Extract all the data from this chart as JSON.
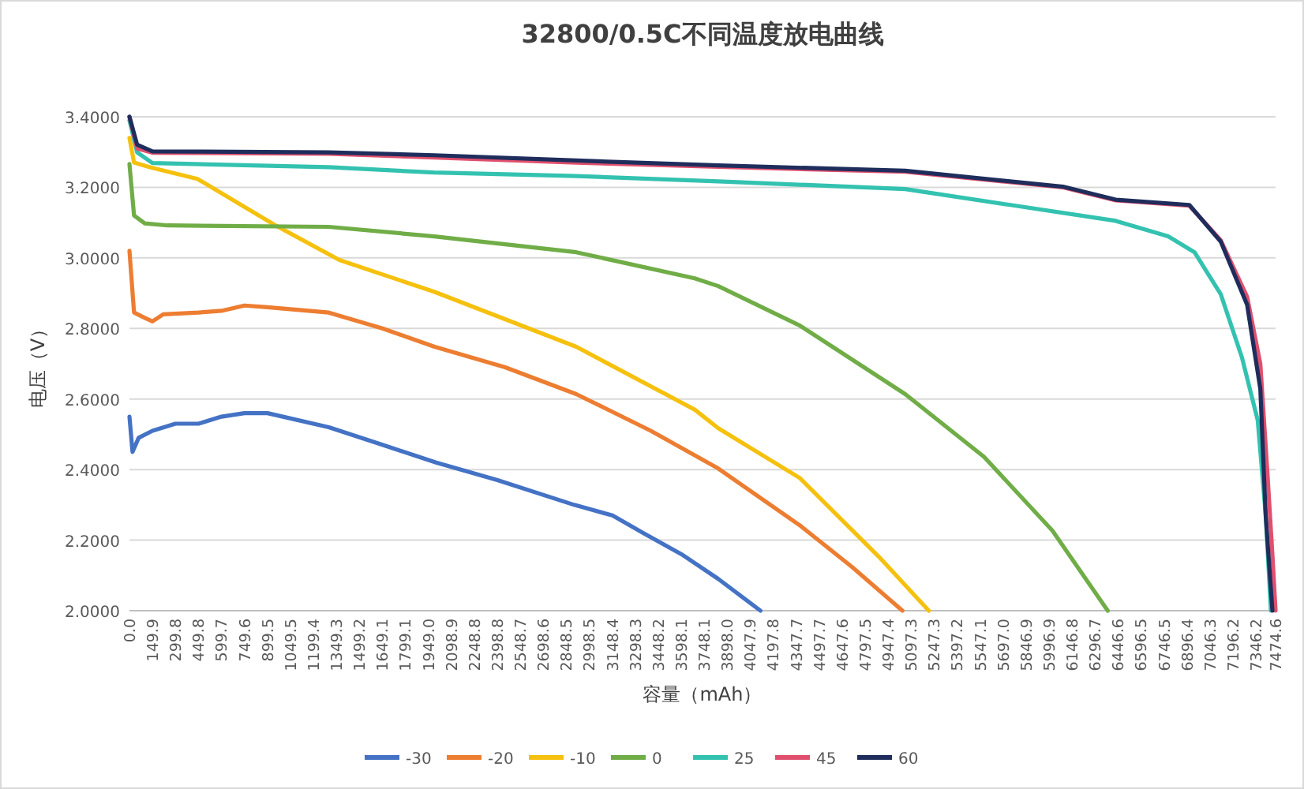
{
  "chart_data": {
    "type": "line",
    "title": "32800/0.5C不同温度放电曲线",
    "xlabel": "容量（mAh）",
    "ylabel": "电压（V）",
    "xlim": [
      0,
      7474.6
    ],
    "ylim": [
      2.0,
      3.4
    ],
    "xticks": [
      {
        "value": 0,
        "label": "0.0"
      },
      {
        "value": 149.9,
        "label": "149.9"
      },
      {
        "value": 299.8,
        "label": "299.8"
      },
      {
        "value": 449.8,
        "label": "449.8"
      },
      {
        "value": 599.7,
        "label": "599.7"
      },
      {
        "value": 749.6,
        "label": "749.6"
      },
      {
        "value": 899.5,
        "label": "899.5"
      },
      {
        "value": 1049.5,
        "label": "1049.5"
      },
      {
        "value": 1199.4,
        "label": "1199.4"
      },
      {
        "value": 1349.3,
        "label": "1349.3"
      },
      {
        "value": 1499.2,
        "label": "1499.2"
      },
      {
        "value": 1649.1,
        "label": "1649.1"
      },
      {
        "value": 1799.1,
        "label": "1799.1"
      },
      {
        "value": 1949,
        "label": "1949.0"
      },
      {
        "value": 2098.9,
        "label": "2098.9"
      },
      {
        "value": 2248.8,
        "label": "2248.8"
      },
      {
        "value": 2398.8,
        "label": "2398.8"
      },
      {
        "value": 2548.7,
        "label": "2548.7"
      },
      {
        "value": 2698.6,
        "label": "2698.6"
      },
      {
        "value": 2848.5,
        "label": "2848.5"
      },
      {
        "value": 2998.5,
        "label": "2998.5"
      },
      {
        "value": 3148.4,
        "label": "3148.4"
      },
      {
        "value": 3298.3,
        "label": "3298.3"
      },
      {
        "value": 3448.2,
        "label": "3448.2"
      },
      {
        "value": 3598.1,
        "label": "3598.1"
      },
      {
        "value": 3748.1,
        "label": "3748.1"
      },
      {
        "value": 3898,
        "label": "3898.0"
      },
      {
        "value": 4047.9,
        "label": "4047.9"
      },
      {
        "value": 4197.8,
        "label": "4197.8"
      },
      {
        "value": 4347.7,
        "label": "4347.7"
      },
      {
        "value": 4497.7,
        "label": "4497.7"
      },
      {
        "value": 4647.6,
        "label": "4647.6"
      },
      {
        "value": 4797.5,
        "label": "4797.5"
      },
      {
        "value": 4947.4,
        "label": "4947.4"
      },
      {
        "value": 5097.3,
        "label": "5097.3"
      },
      {
        "value": 5247.3,
        "label": "5247.3"
      },
      {
        "value": 5397.2,
        "label": "5397.2"
      },
      {
        "value": 5547.1,
        "label": "5547.1"
      },
      {
        "value": 5697,
        "label": "5697.0"
      },
      {
        "value": 5846.9,
        "label": "5846.9"
      },
      {
        "value": 5996.9,
        "label": "5996.9"
      },
      {
        "value": 6146.8,
        "label": "6146.8"
      },
      {
        "value": 6296.7,
        "label": "6296.7"
      },
      {
        "value": 6446.6,
        "label": "6446.6"
      },
      {
        "value": 6596.5,
        "label": "6596.5"
      },
      {
        "value": 6746.5,
        "label": "6746.5"
      },
      {
        "value": 6896.4,
        "label": "6896.4"
      },
      {
        "value": 7046.3,
        "label": "7046.3"
      },
      {
        "value": 7196.2,
        "label": "7196.2"
      },
      {
        "value": 7346.2,
        "label": "7346.2"
      },
      {
        "value": 7474.6,
        "label": "7474.6"
      }
    ],
    "yticks": [
      {
        "value": 2.0,
        "label": "2.0000"
      },
      {
        "value": 2.2,
        "label": "2.2000"
      },
      {
        "value": 2.4,
        "label": "2.4000"
      },
      {
        "value": 2.6,
        "label": "2.6000"
      },
      {
        "value": 2.8,
        "label": "2.8000"
      },
      {
        "value": 3.0,
        "label": "3.0000"
      },
      {
        "value": 3.2,
        "label": "3.2000"
      },
      {
        "value": 3.4,
        "label": "3.4000"
      }
    ],
    "grid": "y",
    "legend": "bottom",
    "series": [
      {
        "name": "-30",
        "color": "#4472c4",
        "x": [
          0,
          20,
          60,
          150,
          300,
          450,
          600,
          750,
          900,
          1300,
          1650,
          2000,
          2400,
          2900,
          3150,
          3350,
          3600,
          3840,
          4115
        ],
        "values": [
          2.55,
          2.45,
          2.49,
          2.51,
          2.53,
          2.53,
          2.55,
          2.56,
          2.56,
          2.52,
          2.47,
          2.42,
          2.37,
          2.3,
          2.27,
          2.22,
          2.16,
          2.09,
          2.0
        ]
      },
      {
        "name": "-20",
        "color": "#ed7d31",
        "x": [
          0,
          30,
          100,
          150,
          220,
          450,
          600,
          750,
          900,
          1300,
          1650,
          1990,
          2450,
          2914,
          3400,
          3840,
          4372,
          4715,
          5041
        ],
        "values": [
          3.02,
          2.845,
          2.83,
          2.82,
          2.84,
          2.845,
          2.85,
          2.865,
          2.86,
          2.845,
          2.8,
          2.748,
          2.69,
          2.614,
          2.51,
          2.403,
          2.242,
          2.123,
          2.0
        ]
      },
      {
        "name": "-10",
        "color": "#f5c10e",
        "x": [
          0,
          30,
          134,
          443,
          957,
          1369,
          1987,
          2914,
          3686,
          3840,
          4372,
          4887,
          5213
        ],
        "values": [
          3.34,
          3.27,
          3.257,
          3.224,
          3.091,
          2.994,
          2.904,
          2.748,
          2.57,
          2.517,
          2.376,
          2.153,
          2.0
        ]
      },
      {
        "name": "0",
        "color": "#70ad47",
        "x": [
          0,
          30,
          100,
          250,
          1300,
          1987,
          2914,
          3686,
          3840,
          4372,
          5059,
          5573,
          6019,
          6380
        ],
        "values": [
          3.266,
          3.12,
          3.098,
          3.092,
          3.088,
          3.061,
          3.016,
          2.942,
          2.92,
          2.808,
          2.614,
          2.436,
          2.227,
          2.0
        ]
      },
      {
        "name": "25",
        "color": "#33c2b0",
        "x": [
          0,
          50,
          150,
          1300,
          1987,
          2914,
          3840,
          5059,
          5745,
          6432,
          6774,
          6946,
          7117,
          7255,
          7358,
          7410,
          7444
        ],
        "values": [
          3.39,
          3.299,
          3.269,
          3.257,
          3.242,
          3.232,
          3.217,
          3.195,
          3.15,
          3.105,
          3.061,
          3.016,
          2.897,
          2.718,
          2.54,
          2.272,
          2.0
        ]
      },
      {
        "name": "45",
        "color": "#e0506e",
        "x": [
          0,
          50,
          150,
          1300,
          2914,
          3840,
          5059,
          6088,
          6432,
          6912,
          7117,
          7289,
          7375,
          7420,
          7455,
          7474.6
        ],
        "values": [
          3.4,
          3.31,
          3.298,
          3.295,
          3.27,
          3.258,
          3.244,
          3.2,
          3.163,
          3.148,
          3.05,
          2.89,
          2.7,
          2.4,
          2.15,
          2.0
        ]
      },
      {
        "name": "60",
        "color": "#1f2d5c",
        "x": [
          0,
          50,
          150,
          1300,
          1987,
          2914,
          3840,
          5059,
          6088,
          6432,
          6912,
          7117,
          7289,
          7375,
          7410,
          7454
        ],
        "values": [
          3.4,
          3.321,
          3.302,
          3.299,
          3.291,
          3.276,
          3.262,
          3.247,
          3.202,
          3.165,
          3.15,
          3.046,
          2.867,
          2.629,
          2.27,
          2.0
        ]
      }
    ]
  }
}
